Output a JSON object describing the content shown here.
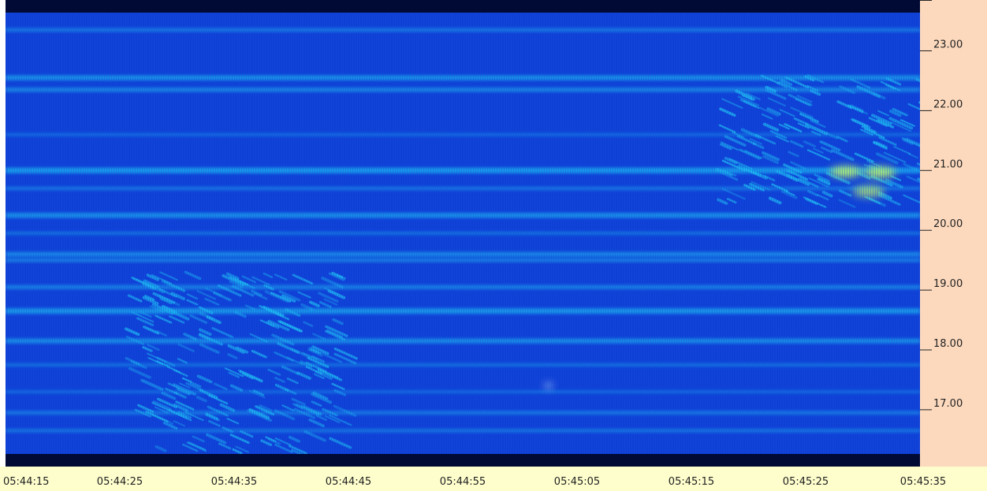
{
  "chart_data": {
    "type": "heatmap",
    "title": "",
    "xlabel": "",
    "ylabel": "",
    "colors": {
      "axis_panel": "#fcd9bd",
      "time_axis_panel": "#fefecd",
      "edge_band": "#000a35",
      "background": "#0f40d6",
      "strong_band": "#1eb8f0",
      "hotspot": "#b8f070"
    },
    "x_ticks": [
      "05:44:15",
      "05:44:25",
      "05:44:35",
      "05:44:45",
      "05:44:55",
      "05:45:05",
      "05:45:15",
      "05:45:25",
      "05:45:35"
    ],
    "y_ticks": [
      "23.00",
      "22.00",
      "21.00",
      "20.00",
      "19.00",
      "18.00",
      "17.00"
    ],
    "x_range_seconds_after_first_tick": [
      0,
      80
    ],
    "y_range": [
      16.05,
      23.85
    ],
    "horizontal_bands": [
      {
        "y": 23.35,
        "strength": 0.45
      },
      {
        "y": 22.55,
        "strength": 0.75
      },
      {
        "y": 22.35,
        "strength": 0.6
      },
      {
        "y": 21.6,
        "strength": 0.3
      },
      {
        "y": 21.0,
        "strength": 0.9
      },
      {
        "y": 20.7,
        "strength": 0.4
      },
      {
        "y": 20.25,
        "strength": 0.75
      },
      {
        "y": 19.95,
        "strength": 0.35
      },
      {
        "y": 19.6,
        "strength": 0.65
      },
      {
        "y": 19.5,
        "strength": 0.5
      },
      {
        "y": 19.05,
        "strength": 0.55
      },
      {
        "y": 18.65,
        "strength": 0.85
      },
      {
        "y": 18.15,
        "strength": 0.7
      },
      {
        "y": 17.75,
        "strength": 0.35
      },
      {
        "y": 17.3,
        "strength": 0.3
      },
      {
        "y": 16.95,
        "strength": 0.45
      },
      {
        "y": 16.65,
        "strength": 0.4
      }
    ],
    "bursts": [
      {
        "t_start": 10.5,
        "t_end": 29,
        "y_low": 16.3,
        "y_high": 19.3,
        "strength": 0.8
      },
      {
        "t_start": 62,
        "t_end": 80,
        "y_low": 20.5,
        "y_high": 22.6,
        "strength": 0.9
      }
    ],
    "hotspots": [
      {
        "t": 73.5,
        "y": 20.98,
        "strength": 1.0
      },
      {
        "t": 76.5,
        "y": 20.97,
        "strength": 1.0
      },
      {
        "t": 75.5,
        "y": 20.65,
        "strength": 0.85
      },
      {
        "t": 47.5,
        "y": 17.4,
        "strength": 0.9
      }
    ]
  }
}
